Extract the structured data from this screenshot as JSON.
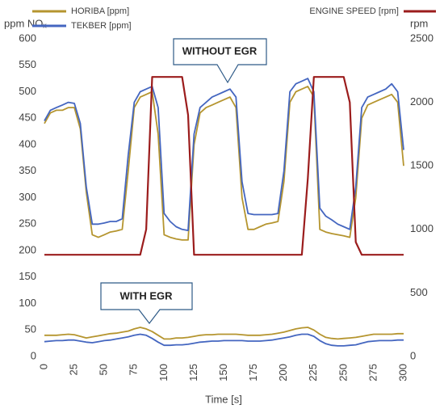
{
  "chart_data": {
    "type": "line",
    "y_label": "ppm NOₓ",
    "y2_label": "rpm",
    "x_label": "Time [s]",
    "annotations": [
      "WITHOUT EGR",
      "WITH EGR"
    ],
    "x": [
      0,
      5,
      10,
      15,
      20,
      25,
      30,
      35,
      40,
      45,
      50,
      55,
      60,
      65,
      70,
      75,
      80,
      85,
      90,
      95,
      100,
      105,
      110,
      115,
      120,
      125,
      130,
      135,
      140,
      145,
      150,
      155,
      160,
      165,
      170,
      175,
      180,
      185,
      190,
      195,
      200,
      205,
      210,
      215,
      220,
      225,
      230,
      235,
      240,
      245,
      250,
      255,
      260,
      265,
      270,
      275,
      280,
      285,
      290,
      295,
      300
    ],
    "xlim": [
      0,
      300
    ],
    "xticks": [
      0,
      25,
      50,
      75,
      100,
      125,
      150,
      175,
      200,
      225,
      250,
      275,
      300
    ],
    "ylim": [
      0,
      600
    ],
    "yticks": [
      0,
      50,
      100,
      150,
      200,
      250,
      300,
      350,
      400,
      450,
      500,
      550,
      600
    ],
    "y2lim": [
      0,
      2500
    ],
    "y2ticks": [
      0,
      500,
      1000,
      1500,
      2000,
      2500
    ],
    "series": [
      {
        "name": "HORIBA [ppm]",
        "color": "#b5952f",
        "values": [
          440,
          460,
          465,
          465,
          470,
          470,
          430,
          310,
          230,
          225,
          230,
          235,
          237,
          240,
          350,
          470,
          490,
          495,
          500,
          420,
          230,
          225,
          222,
          220,
          220,
          400,
          460,
          470,
          475,
          480,
          485,
          490,
          470,
          300,
          240,
          240,
          245,
          250,
          252,
          255,
          330,
          480,
          500,
          505,
          510,
          490,
          240,
          235,
          232,
          230,
          228,
          225,
          300,
          450,
          475,
          480,
          485,
          490,
          495,
          480,
          360
        ],
        "egr_values": [
          40,
          40,
          40,
          41,
          42,
          41,
          38,
          35,
          37,
          39,
          41,
          43,
          44,
          46,
          48,
          52,
          55,
          52,
          47,
          40,
          33,
          33,
          35,
          35,
          36,
          38,
          40,
          41,
          41,
          42,
          42,
          42,
          42,
          41,
          40,
          40,
          40,
          41,
          42,
          44,
          46,
          49,
          52,
          54,
          55,
          50,
          42,
          36,
          34,
          33,
          34,
          35,
          36,
          38,
          40,
          42,
          42,
          42,
          42,
          43,
          43
        ]
      },
      {
        "name": "TEKBER [ppm]",
        "color": "#4466c0",
        "values": [
          445,
          465,
          470,
          475,
          480,
          478,
          440,
          320,
          250,
          250,
          252,
          255,
          255,
          260,
          380,
          480,
          500,
          505,
          510,
          470,
          270,
          255,
          245,
          240,
          238,
          420,
          470,
          480,
          490,
          495,
          500,
          505,
          490,
          330,
          270,
          268,
          268,
          268,
          268,
          270,
          350,
          500,
          515,
          520,
          525,
          500,
          280,
          265,
          258,
          250,
          245,
          240,
          320,
          470,
          490,
          495,
          500,
          505,
          515,
          500,
          390
        ],
        "egr_values": [
          28,
          29,
          30,
          30,
          31,
          31,
          29,
          27,
          26,
          28,
          30,
          31,
          33,
          35,
          37,
          40,
          42,
          40,
          34,
          27,
          21,
          21,
          22,
          22,
          23,
          25,
          27,
          28,
          29,
          29,
          30,
          30,
          30,
          30,
          29,
          29,
          29,
          30,
          31,
          33,
          35,
          37,
          40,
          42,
          42,
          38,
          30,
          24,
          21,
          20,
          20,
          21,
          22,
          25,
          28,
          29,
          30,
          30,
          30,
          31,
          31
        ]
      },
      {
        "name": "ENGINE SPEED [rpm]",
        "color": "#9b1c1c",
        "axis": "y2",
        "values": [
          800,
          800,
          800,
          800,
          800,
          800,
          800,
          800,
          800,
          800,
          800,
          800,
          800,
          800,
          800,
          800,
          800,
          1000,
          2200,
          2200,
          2200,
          2200,
          2200,
          2200,
          1900,
          800,
          800,
          800,
          800,
          800,
          800,
          800,
          800,
          800,
          800,
          800,
          800,
          800,
          800,
          800,
          800,
          800,
          800,
          800,
          1400,
          2200,
          2200,
          2200,
          2200,
          2200,
          2200,
          2000,
          900,
          800,
          800,
          800,
          800,
          800,
          800,
          800,
          800
        ]
      }
    ]
  }
}
